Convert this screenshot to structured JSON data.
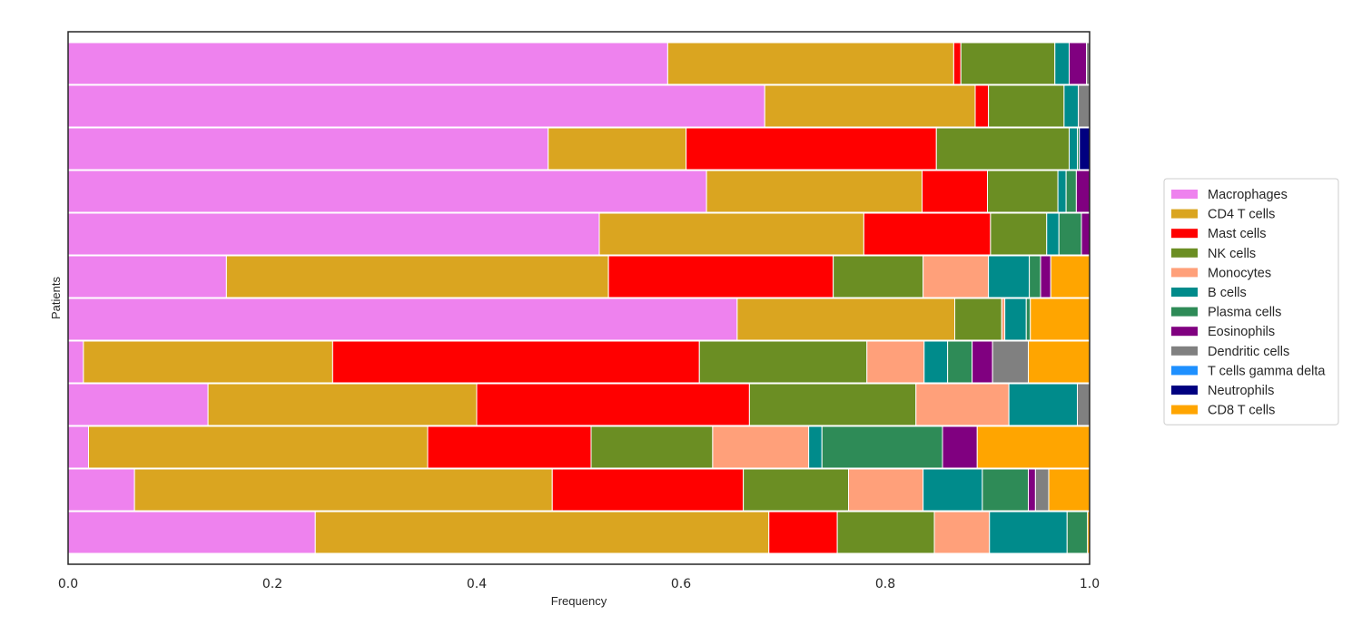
{
  "chart_data": {
    "type": "bar",
    "orientation": "horizontal-stacked",
    "xlabel": "Frequency",
    "ylabel": "Patients",
    "xlim": [
      0,
      1
    ],
    "xticks": [
      "0.0",
      "0.2",
      "0.4",
      "0.6",
      "0.8",
      "1.0"
    ],
    "yticks_shown": false,
    "grid": false,
    "legend_placement": "right",
    "series": [
      {
        "name": "Macrophages",
        "color": "#ee82ee",
        "values": [
          0.587,
          0.682,
          0.47,
          0.625,
          0.52,
          0.155,
          0.655,
          0.015,
          0.137,
          0.02,
          0.065,
          0.242
        ]
      },
      {
        "name": "CD4 T cells",
        "color": "#daa520",
        "values": [
          0.28,
          0.206,
          0.135,
          0.211,
          0.259,
          0.374,
          0.213,
          0.244,
          0.263,
          0.332,
          0.409,
          0.444
        ]
      },
      {
        "name": "Mast cells",
        "color": "#ff0000",
        "values": [
          0.007,
          0.013,
          0.245,
          0.064,
          0.124,
          0.22,
          0.0,
          0.359,
          0.267,
          0.16,
          0.187,
          0.067
        ]
      },
      {
        "name": "NK cells",
        "color": "#6b8e23",
        "values": [
          0.092,
          0.074,
          0.13,
          0.069,
          0.055,
          0.088,
          0.046,
          0.164,
          0.163,
          0.119,
          0.103,
          0.095
        ]
      },
      {
        "name": "Monocytes",
        "color": "#ffa07a",
        "values": [
          0.0,
          0.0,
          0.0,
          0.0,
          0.0,
          0.064,
          0.003,
          0.056,
          0.091,
          0.094,
          0.073,
          0.054
        ]
      },
      {
        "name": "B cells",
        "color": "#008b8b",
        "values": [
          0.014,
          0.014,
          0.008,
          0.008,
          0.012,
          0.04,
          0.021,
          0.023,
          0.067,
          0.013,
          0.058,
          0.076
        ]
      },
      {
        "name": "Plasma cells",
        "color": "#2e8b57",
        "values": [
          0.0,
          0.0,
          0.002,
          0.01,
          0.022,
          0.011,
          0.004,
          0.024,
          0.0,
          0.118,
          0.045,
          0.02
        ]
      },
      {
        "name": "Eosinophils",
        "color": "#800080",
        "values": [
          0.017,
          0.0,
          0.0,
          0.013,
          0.008,
          0.01,
          0.0,
          0.02,
          0.0,
          0.034,
          0.007,
          0.0
        ]
      },
      {
        "name": "Dendritic cells",
        "color": "#808080",
        "values": [
          0.003,
          0.011,
          0.0,
          0.0,
          0.0,
          0.0,
          0.0,
          0.035,
          0.013,
          0.0,
          0.013,
          0.0
        ]
      },
      {
        "name": "T cells gamma delta",
        "color": "#1e90ff",
        "values": [
          0.0,
          0.0,
          0.0,
          0.0,
          0.0,
          0.0,
          0.0,
          0.0,
          0.0,
          0.0,
          0.0,
          0.0
        ]
      },
      {
        "name": "Neutrophils",
        "color": "#000080",
        "values": [
          0.0,
          0.0,
          0.01,
          0.0,
          0.0,
          0.0,
          0.0,
          0.0,
          0.0,
          0.0,
          0.0,
          0.0
        ]
      },
      {
        "name": "CD8 T cells",
        "color": "#ffa500",
        "values": [
          0.0,
          0.0,
          0.0,
          0.0,
          0.0,
          0.038,
          0.058,
          0.06,
          0.0,
          0.11,
          0.04,
          0.002
        ]
      }
    ]
  }
}
